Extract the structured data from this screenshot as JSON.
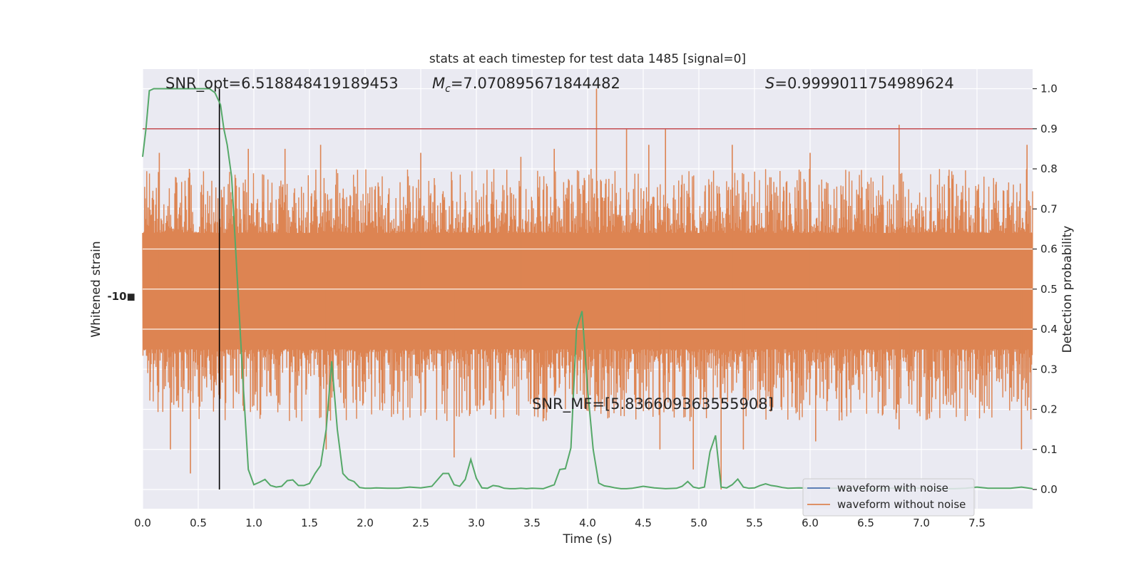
{
  "chart_data": {
    "type": "line",
    "title": "stats at each timestep for test data 1485 [signal=0]",
    "xlabel": "Time (s)",
    "ylabel_left": "Whitened strain",
    "ylabel_right": "Detection probability",
    "xlim": [
      0.0,
      8.0
    ],
    "ylim_right": [
      -0.05,
      1.05
    ],
    "x_ticks": [
      "0.0",
      "0.5",
      "1.0",
      "1.5",
      "2.0",
      "2.5",
      "3.0",
      "3.5",
      "4.0",
      "4.5",
      "5.0",
      "5.5",
      "6.0",
      "6.5",
      "7.0",
      "7.5"
    ],
    "x_tick_values": [
      0.0,
      0.5,
      1.0,
      1.5,
      2.0,
      2.5,
      3.0,
      3.5,
      4.0,
      4.5,
      5.0,
      5.5,
      6.0,
      6.5,
      7.0,
      7.5
    ],
    "y_right_ticks": [
      "0.0",
      "0.1",
      "0.2",
      "0.3",
      "0.4",
      "0.5",
      "0.6",
      "0.7",
      "0.8",
      "0.9",
      "1.0"
    ],
    "y_right_tick_values": [
      0.0,
      0.1,
      0.2,
      0.3,
      0.4,
      0.5,
      0.6,
      0.7,
      0.8,
      0.9,
      1.0
    ],
    "grid": true,
    "legend_position": "lower-right",
    "legend": [
      {
        "label": "waveform with noise",
        "color": "#4c72b0"
      },
      {
        "label": "waveform without noise",
        "color": "#dd8452"
      }
    ],
    "annotations": {
      "snr_opt": "SNR_opt=6.518848419189453",
      "mc_symbol": "M",
      "mc_sub": "c",
      "mc_value": "=7.070895671844482",
      "s_symbol": "S",
      "s_value": "=0.9999011754989624",
      "snr_mf": "SNR_MF=[5.836609363555908]"
    },
    "threshold": {
      "value": 0.9,
      "color": "#c44e52"
    },
    "marker_line": {
      "x": 0.69,
      "color": "#000000"
    },
    "strain_band": {
      "color": "#dd8452",
      "center": 0.5,
      "core_low": 0.35,
      "core_high": 0.64,
      "spikes_up": [
        [
          0.15,
          0.84
        ],
        [
          0.42,
          0.8
        ],
        [
          0.95,
          0.85
        ],
        [
          1.28,
          0.85
        ],
        [
          1.6,
          0.86
        ],
        [
          2.5,
          0.84
        ],
        [
          3.4,
          0.83
        ],
        [
          3.7,
          0.85
        ],
        [
          4.08,
          1.0
        ],
        [
          4.35,
          0.9
        ],
        [
          4.55,
          0.86
        ],
        [
          4.7,
          0.9
        ],
        [
          5.3,
          0.86
        ],
        [
          6.0,
          0.84
        ],
        [
          6.8,
          0.91
        ],
        [
          7.95,
          0.86
        ]
      ],
      "spikes_down": [
        [
          0.25,
          0.1
        ],
        [
          0.43,
          0.04
        ],
        [
          1.65,
          0.1
        ],
        [
          2.8,
          0.08
        ],
        [
          3.6,
          0.17
        ],
        [
          4.65,
          0.1
        ],
        [
          4.95,
          0.05
        ],
        [
          5.2,
          0.0
        ],
        [
          5.4,
          0.1
        ],
        [
          6.05,
          0.12
        ],
        [
          6.8,
          0.15
        ],
        [
          7.9,
          0.1
        ]
      ]
    },
    "series": [
      {
        "name": "detection probability",
        "color": "#55a868",
        "x": [
          0.0,
          0.03,
          0.06,
          0.1,
          0.2,
          0.3,
          0.4,
          0.5,
          0.6,
          0.65,
          0.7,
          0.73,
          0.76,
          0.8,
          0.85,
          0.9,
          0.95,
          1.0,
          1.05,
          1.1,
          1.15,
          1.2,
          1.25,
          1.3,
          1.35,
          1.4,
          1.45,
          1.5,
          1.55,
          1.6,
          1.65,
          1.7,
          1.75,
          1.8,
          1.85,
          1.9,
          1.95,
          2.0,
          2.05,
          2.1,
          2.2,
          2.3,
          2.4,
          2.5,
          2.6,
          2.7,
          2.75,
          2.8,
          2.85,
          2.9,
          2.95,
          3.0,
          3.05,
          3.1,
          3.15,
          3.2,
          3.25,
          3.3,
          3.35,
          3.4,
          3.45,
          3.5,
          3.6,
          3.7,
          3.75,
          3.8,
          3.85,
          3.9,
          3.95,
          4.0,
          4.05,
          4.1,
          4.15,
          4.2,
          4.25,
          4.3,
          4.35,
          4.4,
          4.5,
          4.6,
          4.7,
          4.8,
          4.85,
          4.9,
          4.95,
          5.0,
          5.05,
          5.1,
          5.15,
          5.2,
          5.25,
          5.3,
          5.35,
          5.4,
          5.45,
          5.5,
          5.55,
          5.6,
          5.65,
          5.7,
          5.75,
          5.8,
          5.9,
          6.0,
          6.1,
          6.2,
          6.3,
          6.4,
          6.5,
          6.6,
          6.7,
          6.8,
          6.9,
          7.0,
          7.1,
          7.2,
          7.3,
          7.4,
          7.5,
          7.6,
          7.7,
          7.8,
          7.9,
          8.0
        ],
        "y": [
          0.83,
          0.9,
          0.995,
          1.0,
          1.0,
          1.0,
          1.0,
          1.0,
          1.0,
          0.99,
          0.96,
          0.9,
          0.86,
          0.78,
          0.53,
          0.28,
          0.05,
          0.012,
          0.018,
          0.025,
          0.01,
          0.006,
          0.008,
          0.022,
          0.024,
          0.01,
          0.01,
          0.015,
          0.04,
          0.06,
          0.15,
          0.32,
          0.15,
          0.04,
          0.025,
          0.02,
          0.005,
          0.003,
          0.003,
          0.004,
          0.003,
          0.003,
          0.006,
          0.004,
          0.008,
          0.04,
          0.04,
          0.012,
          0.008,
          0.025,
          0.075,
          0.028,
          0.004,
          0.003,
          0.01,
          0.008,
          0.003,
          0.002,
          0.002,
          0.003,
          0.002,
          0.003,
          0.002,
          0.012,
          0.05,
          0.052,
          0.104,
          0.4,
          0.445,
          0.25,
          0.1,
          0.016,
          0.009,
          0.007,
          0.004,
          0.002,
          0.002,
          0.003,
          0.008,
          0.004,
          0.002,
          0.003,
          0.008,
          0.02,
          0.006,
          0.003,
          0.006,
          0.094,
          0.135,
          0.006,
          0.004,
          0.012,
          0.026,
          0.006,
          0.003,
          0.004,
          0.01,
          0.014,
          0.01,
          0.008,
          0.005,
          0.003,
          0.004,
          0.003,
          0.004,
          0.003,
          0.003,
          0.003,
          0.002,
          0.002,
          0.003,
          0.003,
          0.003,
          0.003,
          0.002,
          0.002,
          0.002,
          0.003,
          0.006,
          0.003,
          0.003,
          0.003,
          0.006,
          0.002
        ]
      }
    ]
  }
}
